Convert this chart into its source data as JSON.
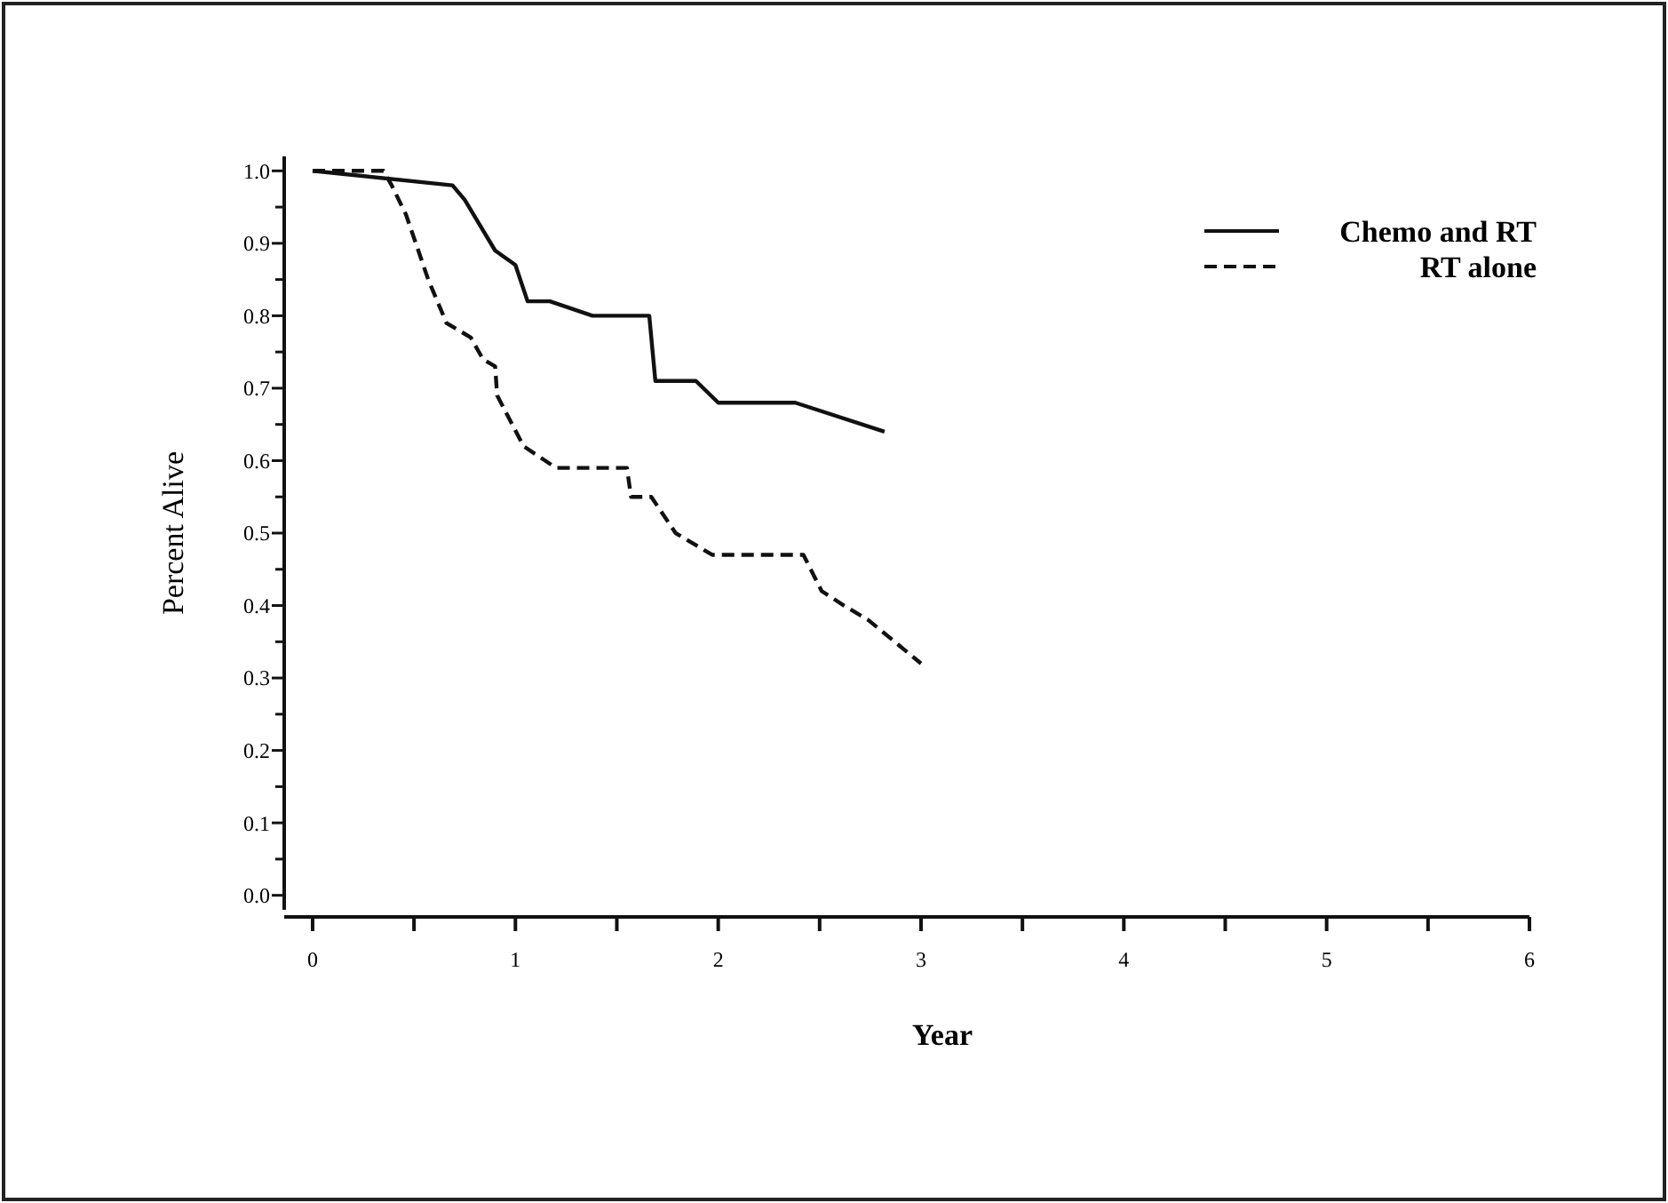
{
  "chart_data": {
    "type": "line",
    "xlabel": "Year",
    "ylabel": "Percent Alive",
    "xlim": [
      -0.14,
      6
    ],
    "ylim": [
      -0.02,
      1.02
    ],
    "xticks": [
      0,
      {
        "value": 0.5,
        "label": null
      },
      1,
      {
        "value": 1.5,
        "label": null
      },
      2,
      {
        "value": 2.5,
        "label": null
      },
      3,
      {
        "value": 3.5,
        "label": null
      },
      4,
      {
        "value": 4.5,
        "label": null
      },
      5,
      {
        "value": 5.5,
        "label": null
      },
      6
    ],
    "yticks": [
      {
        "value": 0,
        "label": "0.0"
      },
      {
        "value": 0.05,
        "label": null
      },
      {
        "value": 0.1,
        "label": "0.1"
      },
      {
        "value": 0.15,
        "label": null
      },
      {
        "value": 0.2,
        "label": "0.2"
      },
      {
        "value": 0.25,
        "label": null
      },
      {
        "value": 0.3,
        "label": "0.3"
      },
      {
        "value": 0.35,
        "label": null
      },
      {
        "value": 0.4,
        "label": "0.4"
      },
      {
        "value": 0.45,
        "label": null
      },
      {
        "value": 0.5,
        "label": "0.5"
      },
      {
        "value": 0.55,
        "label": null
      },
      {
        "value": 0.6,
        "label": "0.6"
      },
      {
        "value": 0.65,
        "label": null
      },
      {
        "value": 0.7,
        "label": "0.7"
      },
      {
        "value": 0.75,
        "label": null
      },
      {
        "value": 0.8,
        "label": "0.8"
      },
      {
        "value": 0.85,
        "label": null
      },
      {
        "value": 0.9,
        "label": "0.9"
      },
      {
        "value": 0.95,
        "label": null
      },
      {
        "value": 1,
        "label": "1.0"
      }
    ],
    "grid": false,
    "legend": "top right",
    "marker": "none",
    "series": [
      {
        "name": "Chemo and RT",
        "color": "#111111",
        "line_style": "solid",
        "x": [
          0,
          0.69,
          0.75,
          0.9,
          1.0,
          1.06,
          1.17,
          1.38,
          1.66,
          1.69,
          1.89,
          2.0,
          2.38,
          2.82
        ],
        "values": [
          1.0,
          0.98,
          0.96,
          0.89,
          0.87,
          0.82,
          0.82,
          0.8,
          0.8,
          0.71,
          0.71,
          0.68,
          0.68,
          0.64
        ]
      },
      {
        "name": "RT alone",
        "color": "#111111",
        "line_style": "dashed",
        "x": [
          0,
          0.35,
          0.39,
          0.46,
          0.57,
          0.66,
          0.78,
          0.84,
          0.9,
          0.91,
          1.04,
          1.2,
          1.55,
          1.57,
          1.67,
          1.79,
          1.97,
          2.42,
          2.51,
          2.62,
          2.74,
          3.0
        ],
        "values": [
          1.0,
          1.0,
          0.98,
          0.94,
          0.85,
          0.79,
          0.77,
          0.74,
          0.73,
          0.69,
          0.62,
          0.59,
          0.59,
          0.55,
          0.55,
          0.5,
          0.47,
          0.47,
          0.42,
          0.4,
          0.38,
          0.32
        ]
      }
    ]
  }
}
